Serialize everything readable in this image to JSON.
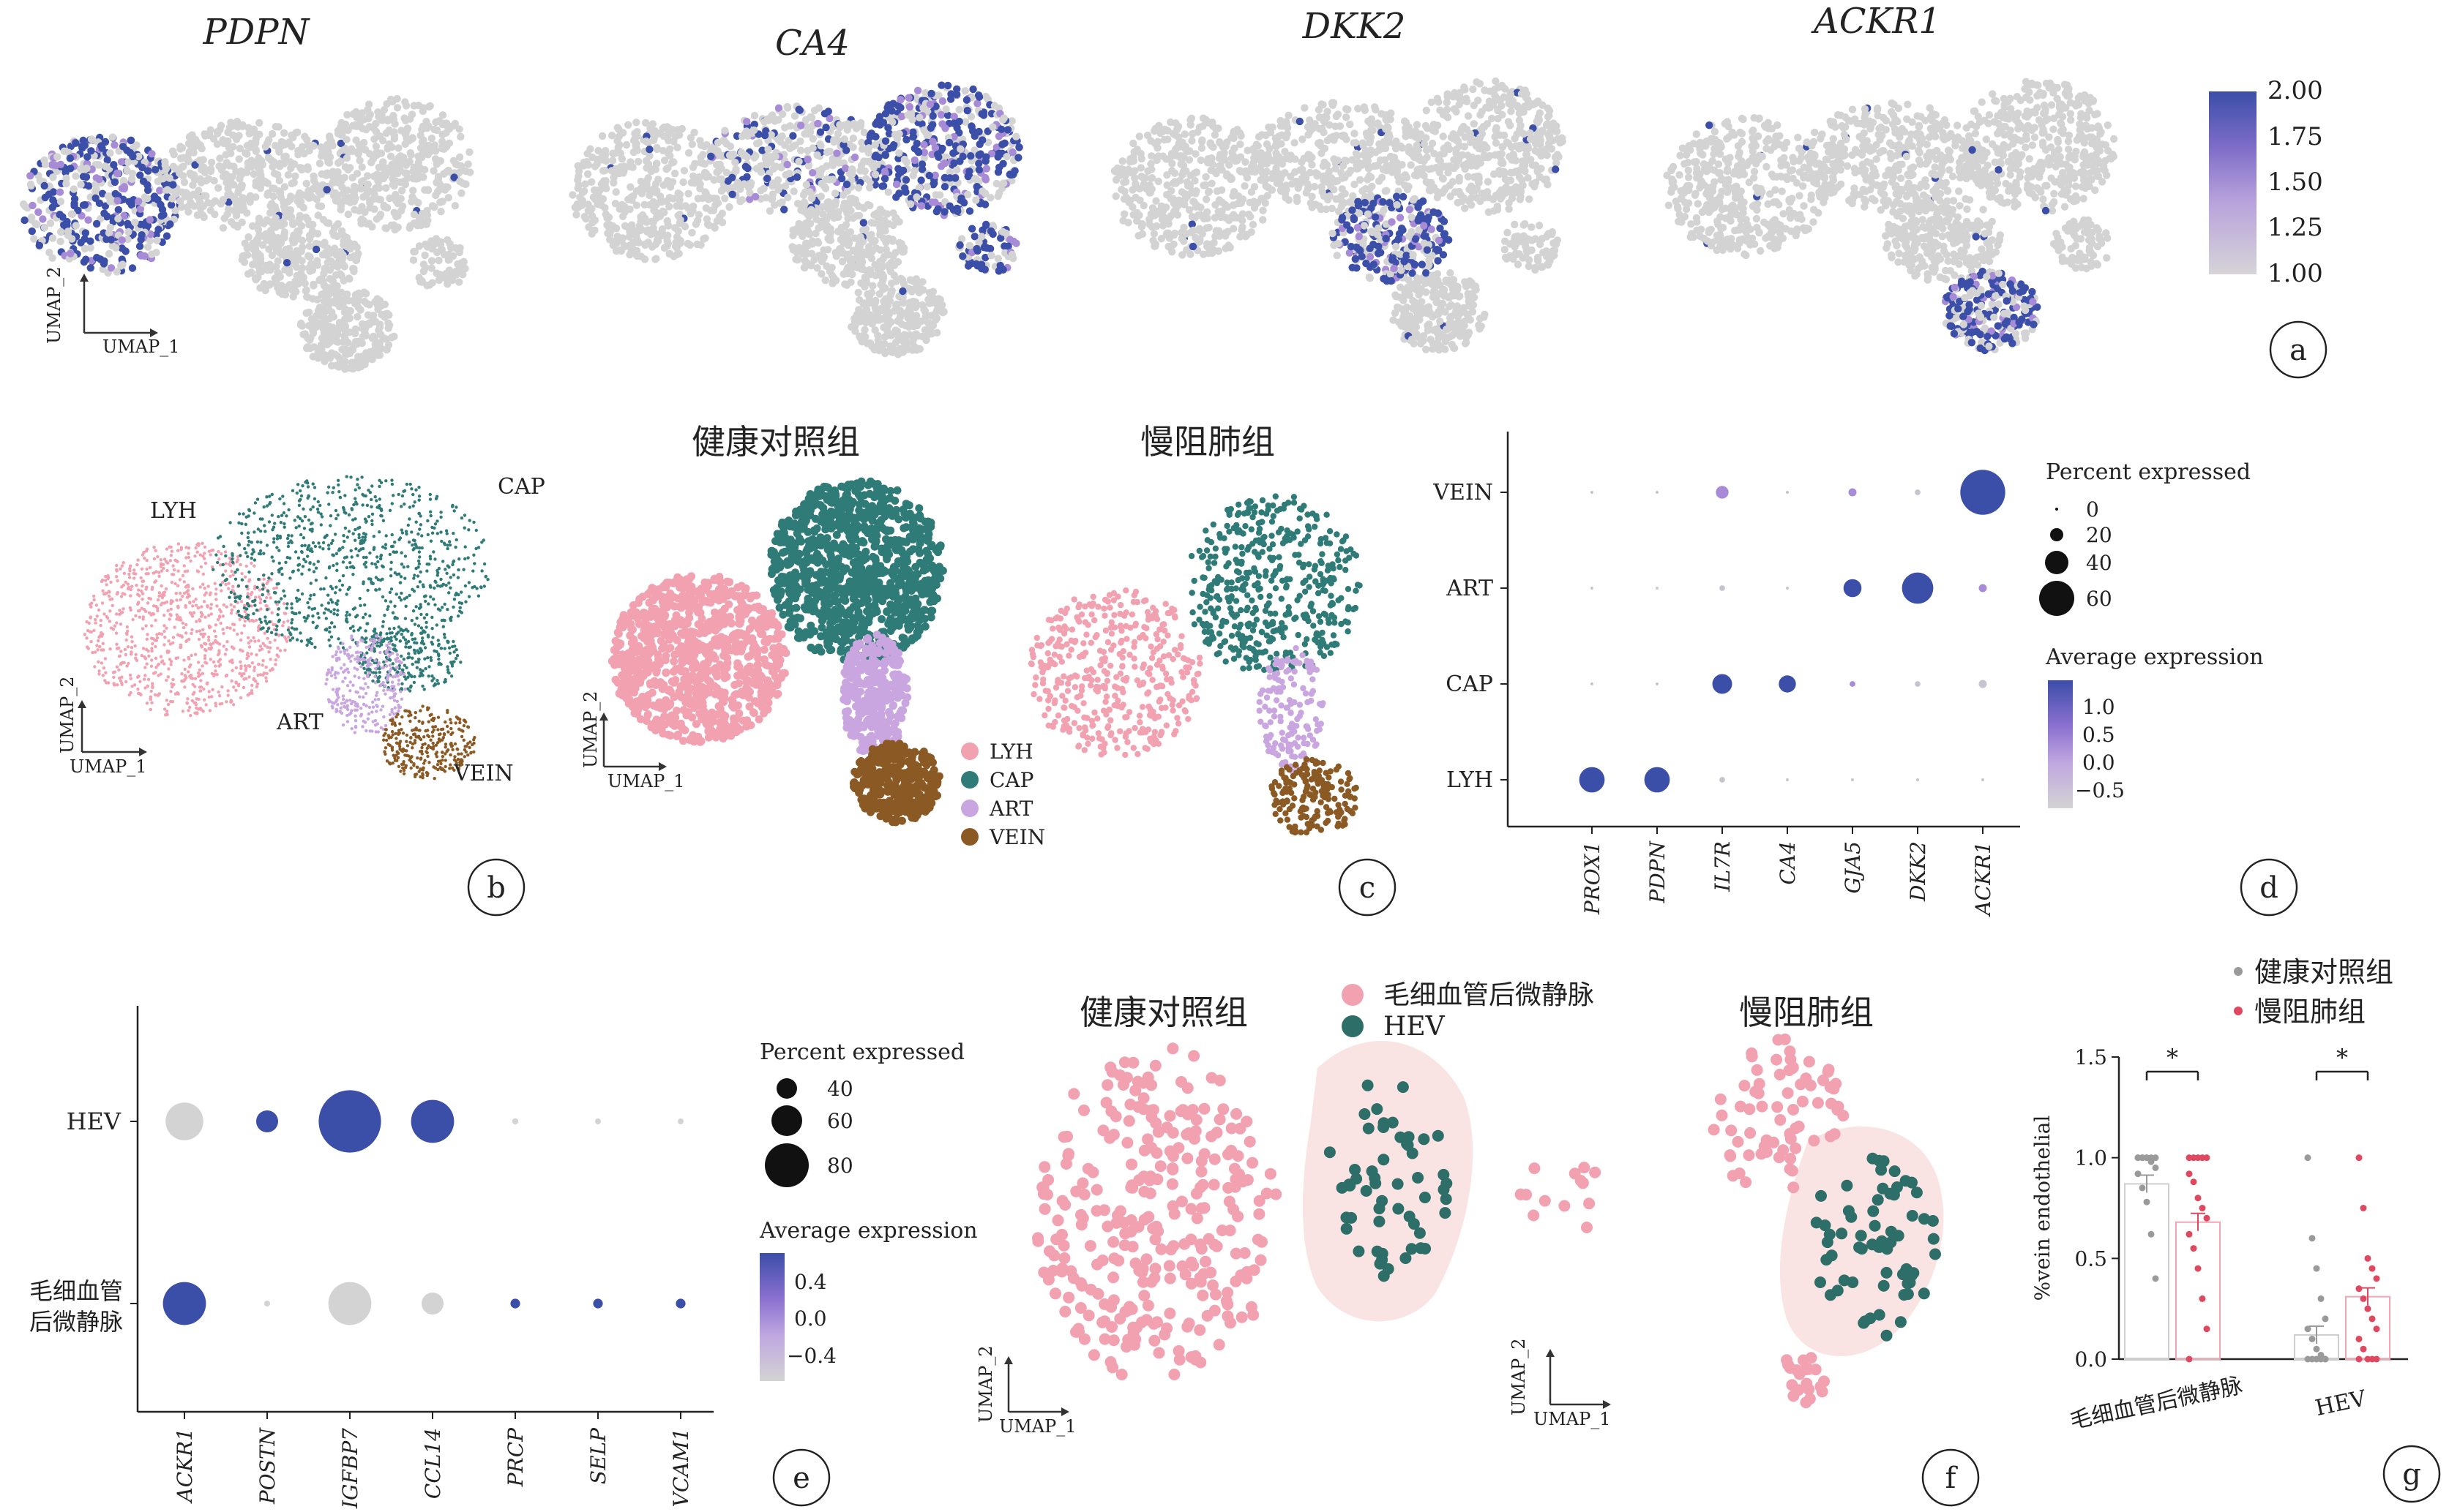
{
  "colors": {
    "grey_cell": "#d3d3d3",
    "expr_low": "#d6d2dd",
    "expr_mid": "#a88bd6",
    "expr_high": "#3b4ea8",
    "LYH": "#f2a1b1",
    "CAP": "#2e7b77",
    "ART": "#c9a6df",
    "VEIN": "#8b5a24",
    "venule": "#f2a1b1",
    "HEV": "#2e6e68",
    "control_point": "#9a9a9a",
    "copd_point": "#e0485f"
  },
  "panel_a": {
    "letter": "a",
    "genes": [
      "PDPN",
      "CA4",
      "DKK2",
      "ACKR1"
    ],
    "axis_x": "UMAP_1",
    "axis_y": "UMAP_2",
    "colorbar_ticks": [
      "2.00",
      "1.75",
      "1.50",
      "1.25",
      "1.00"
    ]
  },
  "panel_b": {
    "letter": "b",
    "clusters": [
      "LYH",
      "CAP",
      "ART",
      "VEIN"
    ],
    "axis_x": "UMAP_1",
    "axis_y": "UMAP_2"
  },
  "panel_c": {
    "letter": "c",
    "group_control": "健康对照组",
    "group_copd": "慢阻肺组",
    "legend": [
      "LYH",
      "CAP",
      "ART",
      "VEIN"
    ],
    "axis_x": "UMAP_1",
    "axis_y": "UMAP_2"
  },
  "panel_d": {
    "letter": "d",
    "size_legend_title": "Percent expressed",
    "size_legend": [
      "0",
      "20",
      "40",
      "60"
    ],
    "color_legend_title": "Average expression",
    "color_ticks": [
      "1.0",
      "0.5",
      "0.0",
      "−0.5"
    ]
  },
  "panel_e": {
    "letter": "e",
    "size_legend_title": "Percent expressed",
    "size_legend": [
      "40",
      "60",
      "80"
    ],
    "color_legend_title": "Average expression",
    "color_ticks": [
      "0.4",
      "0.0",
      "−0.4"
    ]
  },
  "panel_f": {
    "letter": "f",
    "group_control": "健康对照组",
    "group_copd": "慢阻肺组",
    "legend": [
      "毛细血管后微静脉",
      "HEV"
    ],
    "axis_x": "UMAP_1",
    "axis_y": "UMAP_2"
  },
  "panel_g": {
    "letter": "g",
    "legend": [
      "健康对照组",
      "慢阻肺组"
    ],
    "sig": "*"
  },
  "chart_data": [
    {
      "type": "heatmap",
      "panel": "d",
      "subtype": "dotplot",
      "rows": [
        "VEIN",
        "ART",
        "CAP",
        "LYH"
      ],
      "columns": [
        "PROX1",
        "PDPN",
        "IL7R",
        "CA4",
        "GJA5",
        "DKK2",
        "ACKR1"
      ],
      "percent_expressed": [
        [
          0,
          0,
          5,
          0,
          2,
          1,
          62
        ],
        [
          0,
          0,
          1,
          0,
          10,
          30,
          2
        ],
        [
          0,
          0,
          12,
          9,
          1,
          1,
          2
        ],
        [
          20,
          20,
          1,
          0,
          0,
          0,
          0
        ]
      ],
      "average_expression": [
        [
          -0.6,
          -0.6,
          0.1,
          -0.6,
          -0.1,
          -0.6,
          1.2
        ],
        [
          -0.6,
          -0.6,
          -0.6,
          -0.6,
          1.2,
          1.2,
          0.1
        ],
        [
          -0.6,
          -0.6,
          1.2,
          1.2,
          -0.1,
          -0.4,
          -0.4
        ],
        [
          1.2,
          1.2,
          -0.6,
          -0.6,
          -0.6,
          -0.6,
          -0.6
        ]
      ],
      "size_legend_title": "Percent expressed",
      "color_legend_title": "Average expression",
      "color_range": [
        -0.5,
        1.0
      ]
    },
    {
      "type": "heatmap",
      "panel": "e",
      "subtype": "dotplot",
      "rows": [
        "HEV",
        "毛细血管后微静脉"
      ],
      "columns": [
        "ACKR1",
        "POSTN",
        "IGFBP7",
        "CCL14",
        "PRCP",
        "SELP",
        "VCAM1"
      ],
      "percent_expressed": [
        [
          58,
          40,
          86,
          64,
          22,
          8,
          16
        ],
        [
          64,
          4,
          64,
          40,
          26,
          26,
          26
        ]
      ],
      "average_expression": [
        [
          -0.5,
          0.6,
          0.6,
          0.6,
          -0.5,
          -0.5,
          -0.5
        ],
        [
          0.6,
          -0.5,
          -0.5,
          -0.5,
          0.6,
          0.6,
          0.6
        ]
      ],
      "size_legend_title": "Percent expressed",
      "color_legend_title": "Average expression",
      "color_range": [
        -0.4,
        0.4
      ]
    },
    {
      "type": "bar",
      "panel": "g",
      "categories": [
        "毛细血管后微静脉",
        "HEV"
      ],
      "ylabel": "%vein endothelial",
      "ylim": [
        0,
        1.5
      ],
      "yticks": [
        "0.0",
        "0.5",
        "1.0",
        "1.5"
      ],
      "series": [
        {
          "name": "健康对照组",
          "values": [
            0.87,
            0.12
          ],
          "points": [
            [
              1,
              1,
              1,
              1,
              1,
              1,
              1,
              1,
              0.98,
              0.95,
              0.92,
              0.85,
              0.78,
              0.62,
              0.4
            ],
            [
              1.0,
              0.6,
              0.45,
              0.3,
              0.2,
              0.15,
              0.1,
              0.05,
              0.02,
              0,
              0,
              0,
              0,
              0,
              0
            ]
          ]
        },
        {
          "name": "慢阻肺组",
          "values": [
            0.68,
            0.31
          ],
          "points": [
            [
              1,
              1,
              1,
              1,
              1,
              0.92,
              0.88,
              0.8,
              0.75,
              0.7,
              0.62,
              0.55,
              0.45,
              0.3,
              0.15,
              0
            ],
            [
              1.0,
              0.75,
              0.5,
              0.45,
              0.4,
              0.35,
              0.3,
              0.25,
              0.2,
              0.15,
              0.1,
              0.05,
              0,
              0,
              0,
              0
            ]
          ]
        }
      ],
      "significance": [
        "*",
        "*"
      ]
    }
  ]
}
